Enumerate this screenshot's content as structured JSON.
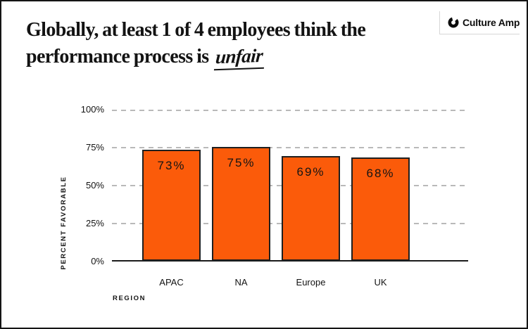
{
  "header": {
    "title_line1": "Globally, at least 1 of 4 employees think the",
    "title_line2_prefix": "performance process is",
    "title_highlight": "unfair",
    "logo": {
      "text": "Culture Amp",
      "icon": "culture-amp-c-icon"
    }
  },
  "chart_data": {
    "type": "bar",
    "title": "Globally, at least 1 of 4 employees think the performance process is unfair",
    "categories": [
      "APAC",
      "NA",
      "Europe",
      "UK"
    ],
    "values": [
      73,
      75,
      69,
      68
    ],
    "value_labels": [
      "73%",
      "75%",
      "69%",
      "68%"
    ],
    "xlabel": "REGION",
    "ylabel": "PERCENT FAVORABLE",
    "ylim": [
      0,
      100
    ],
    "yticks": [
      "100%",
      "75%",
      "50%",
      "25%",
      "0%"
    ],
    "ytick_values": [
      100,
      75,
      50,
      25,
      0
    ],
    "grid": "horizontal-dashed",
    "legend": "none"
  },
  "colors": {
    "bar_fill": "#FB5B0A",
    "bar_border": "#1F1F1F",
    "gridline": "#B9B9B9",
    "axis_line": "#1A1A1A",
    "text": "#131313",
    "logo_divider": "#D6D6D6",
    "card_border": "#141414",
    "background": "#FFFFFF"
  }
}
